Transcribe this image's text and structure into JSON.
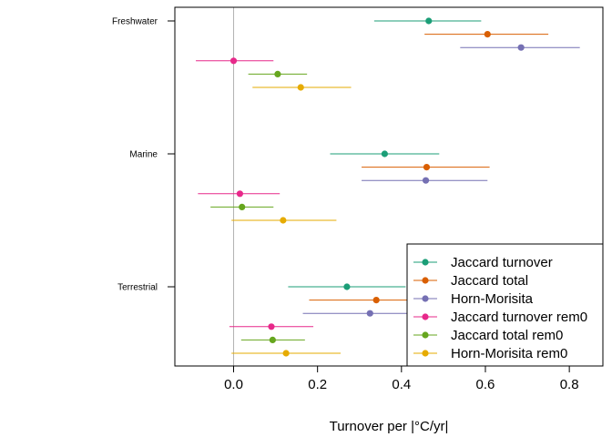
{
  "chart_data": {
    "type": "scatter",
    "title": "",
    "xlabel": "Turnover per |°C/yr|",
    "ylabel": "",
    "xlim": [
      -0.14,
      0.88
    ],
    "xticks": [
      0.0,
      0.2,
      0.4,
      0.6,
      0.8
    ],
    "xtick_labels": [
      "0.0",
      "0.2",
      "0.4",
      "0.6",
      "0.8"
    ],
    "reference_line_x": 0,
    "grid": false,
    "legend_position": "bottom-right",
    "groups": [
      "Freshwater",
      "Marine",
      "Terrestrial"
    ],
    "series": [
      {
        "name": "Jaccard turnover",
        "color": "#1b9e77",
        "points": [
          {
            "group": "Freshwater",
            "value": 0.465,
            "lower": 0.335,
            "upper": 0.59
          },
          {
            "group": "Marine",
            "value": 0.36,
            "lower": 0.23,
            "upper": 0.49
          },
          {
            "group": "Terrestrial",
            "value": 0.27,
            "lower": 0.13,
            "upper": 0.41
          }
        ]
      },
      {
        "name": "Jaccard total",
        "color": "#d95f02",
        "points": [
          {
            "group": "Freshwater",
            "value": 0.605,
            "lower": 0.455,
            "upper": 0.75
          },
          {
            "group": "Marine",
            "value": 0.46,
            "lower": 0.305,
            "upper": 0.61
          },
          {
            "group": "Terrestrial",
            "value": 0.34,
            "lower": 0.18,
            "upper": 0.5
          }
        ]
      },
      {
        "name": "Horn-Morisita",
        "color": "#7570b3",
        "points": [
          {
            "group": "Freshwater",
            "value": 0.685,
            "lower": 0.54,
            "upper": 0.825
          },
          {
            "group": "Marine",
            "value": 0.458,
            "lower": 0.305,
            "upper": 0.605
          },
          {
            "group": "Terrestrial",
            "value": 0.325,
            "lower": 0.165,
            "upper": 0.48
          }
        ]
      },
      {
        "name": "Jaccard turnover rem0",
        "color": "#e7298a",
        "points": [
          {
            "group": "Freshwater",
            "value": 0.0,
            "lower": -0.09,
            "upper": 0.095
          },
          {
            "group": "Marine",
            "value": 0.015,
            "lower": -0.085,
            "upper": 0.11
          },
          {
            "group": "Terrestrial",
            "value": 0.09,
            "lower": -0.01,
            "upper": 0.19
          }
        ]
      },
      {
        "name": "Jaccard total rem0",
        "color": "#66a61e",
        "points": [
          {
            "group": "Freshwater",
            "value": 0.105,
            "lower": 0.035,
            "upper": 0.175
          },
          {
            "group": "Marine",
            "value": 0.02,
            "lower": -0.055,
            "upper": 0.095
          },
          {
            "group": "Terrestrial",
            "value": 0.093,
            "lower": 0.018,
            "upper": 0.17
          }
        ]
      },
      {
        "name": "Horn-Morisita rem0",
        "color": "#e6ab02",
        "points": [
          {
            "group": "Freshwater",
            "value": 0.16,
            "lower": 0.045,
            "upper": 0.28
          },
          {
            "group": "Marine",
            "value": 0.118,
            "lower": -0.005,
            "upper": 0.245
          },
          {
            "group": "Terrestrial",
            "value": 0.125,
            "lower": -0.005,
            "upper": 0.255
          }
        ]
      }
    ]
  }
}
